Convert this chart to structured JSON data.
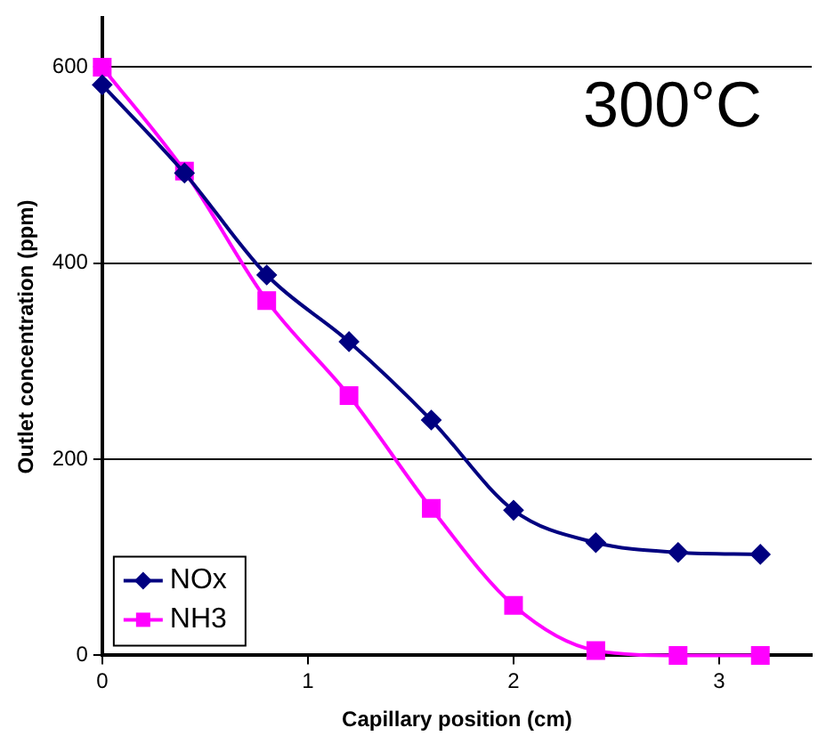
{
  "chart_data": {
    "type": "line",
    "xlabel": "Capillary position (cm)",
    "ylabel": "Outlet concentration (ppm)",
    "annotations": [
      "300°C"
    ],
    "x": [
      0,
      0.4,
      0.8,
      1.2,
      1.6,
      2.0,
      2.4,
      2.8,
      3.2
    ],
    "xlim": [
      0,
      3.45
    ],
    "xticks": [
      0,
      1,
      2,
      3
    ],
    "ylim": [
      0,
      650
    ],
    "yticks": [
      0,
      200,
      400,
      600
    ],
    "grid": "y",
    "legend": "bottom left",
    "series": [
      {
        "name": "NOx",
        "color": "#000080",
        "marker": "diamond",
        "values": [
          582,
          492,
          388,
          320,
          240,
          148,
          115,
          105,
          103
        ]
      },
      {
        "name": "NH3",
        "color": "#ff00ff",
        "marker": "square",
        "values": [
          600,
          494,
          362,
          265,
          150,
          51,
          5,
          0,
          0
        ]
      }
    ]
  }
}
